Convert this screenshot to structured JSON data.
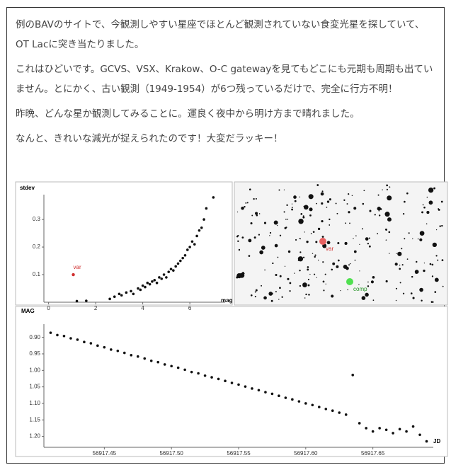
{
  "paragraphs": [
    "例のBAVのサイトで、今観測しやすい星座でほとんど観測されていない食変光星を探していて、OT Lacに突き当たりました。",
    "これはひどいです。GCVS、VSX、Krakow、O-C gatewayを見てもどこにも元期も周期も出ていません。とにかく、古い観測（1949-1954）が6つ残っているだけで、完全に行方不明！",
    "昨晩、どんな星か観測してみることに。運良く夜中から明け方まで晴れました。",
    "なんと、きれいな減光が捉えられたのです！大変だラッキー！"
  ],
  "stdev_plot": {
    "type": "scatter",
    "y_label": "stdev",
    "x_label": "mag",
    "xlim": [
      -0.2,
      7.5
    ],
    "ylim": [
      0,
      0.39
    ],
    "xticks": [
      0,
      2,
      4,
      6
    ],
    "yticks": [
      0.1,
      0.2,
      0.3
    ],
    "color": "#111111",
    "x": [
      1.2,
      1.6,
      2.6,
      2.8,
      3.0,
      3.1,
      3.3,
      3.5,
      3.6,
      3.8,
      3.9,
      4.0,
      4.1,
      4.2,
      4.3,
      4.4,
      4.5,
      4.6,
      4.7,
      4.8,
      4.9,
      5.0,
      5.1,
      5.2,
      5.3,
      5.4,
      5.5,
      5.6,
      5.7,
      5.8,
      5.9,
      6.0,
      6.1,
      6.2,
      6.3,
      6.4,
      6.5,
      6.6,
      6.7,
      7.0
    ],
    "y": [
      0.004,
      0.005,
      0.012,
      0.02,
      0.03,
      0.025,
      0.035,
      0.04,
      0.03,
      0.05,
      0.045,
      0.06,
      0.055,
      0.07,
      0.065,
      0.075,
      0.08,
      0.07,
      0.09,
      0.085,
      0.1,
      0.09,
      0.11,
      0.12,
      0.115,
      0.13,
      0.14,
      0.15,
      0.16,
      0.17,
      0.19,
      0.2,
      0.22,
      0.21,
      0.24,
      0.26,
      0.27,
      0.3,
      0.34,
      0.38
    ],
    "highlight": {
      "label": "var",
      "x": 1.05,
      "y": 0.1,
      "color": "#d03030"
    }
  },
  "field_image": {
    "var_label": "var",
    "comp_label": "comp"
  },
  "light_curve": {
    "type": "scatter",
    "y_label": "MAG",
    "x_label": "JD",
    "xlim": [
      56917.405,
      56917.695
    ],
    "ylim": [
      0.86,
      1.233
    ],
    "y_inverted": true,
    "xticks": [
      56917.45,
      56917.5,
      {
        "value": 56917.5,
        "label": "56917.50"
      },
      56917.55,
      {
        "value": 56917.6,
        "label": "56917.60"
      },
      56917.65
    ],
    "yticks": [
      {
        "value": 0.9,
        "label": "0.90"
      },
      0.95,
      {
        "value": 1.0,
        "label": "1.00"
      },
      1.05,
      {
        "value": 1.1,
        "label": "1.10"
      },
      1.15,
      {
        "value": 1.2,
        "label": "1.20"
      }
    ],
    "color": "#111111",
    "x": [
      56917.41,
      56917.415,
      56917.42,
      56917.425,
      56917.43,
      56917.435,
      56917.44,
      56917.445,
      56917.45,
      56917.455,
      56917.46,
      56917.465,
      56917.47,
      56917.475,
      56917.48,
      56917.485,
      56917.49,
      56917.495,
      56917.5,
      56917.505,
      56917.51,
      56917.515,
      56917.52,
      56917.525,
      56917.53,
      56917.535,
      56917.54,
      56917.545,
      56917.55,
      56917.555,
      56917.56,
      56917.565,
      56917.57,
      56917.575,
      56917.58,
      56917.585,
      56917.59,
      56917.595,
      56917.6,
      56917.605,
      56917.61,
      56917.615,
      56917.62,
      56917.625,
      56917.63,
      56917.635,
      56917.64,
      56917.645,
      56917.65,
      56917.655,
      56917.66,
      56917.665,
      56917.67,
      56917.675,
      56917.68,
      56917.685,
      56917.69
    ],
    "y": [
      0.886,
      0.893,
      0.896,
      0.903,
      0.907,
      0.914,
      0.918,
      0.925,
      0.93,
      0.937,
      0.941,
      0.947,
      0.954,
      0.958,
      0.964,
      0.971,
      0.975,
      0.982,
      0.987,
      0.992,
      0.998,
      1.005,
      1.009,
      1.016,
      1.021,
      1.026,
      1.032,
      1.038,
      1.043,
      1.049,
      1.055,
      1.06,
      1.066,
      1.071,
      1.077,
      1.083,
      1.088,
      1.094,
      1.1,
      1.105,
      1.111,
      1.117,
      1.122,
      1.128,
      1.134,
      1.014,
      1.16,
      1.175,
      1.185,
      1.175,
      1.18,
      1.19,
      1.178,
      1.185,
      1.17,
      1.195,
      1.215
    ]
  }
}
